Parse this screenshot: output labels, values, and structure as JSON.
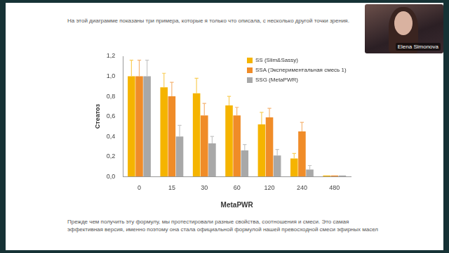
{
  "slide": {
    "intro": "На этой диаграмме показаны три примера, которые я только что описала, с несколько другой точки зрения.",
    "note": "Прежде чем получить эту формулу, мы протестировали разные свойства, соотношения и смеси. Это самая эффективная версия, именно поэтому она стала официальной формулой нашей превосходной смеси эфирных масел",
    "speaker": "Elena Simonova"
  },
  "chart_data": {
    "type": "bar",
    "x_label": "MetaPWR",
    "y_label": "Стеатоз",
    "categories": [
      "0",
      "15",
      "30",
      "60",
      "120",
      "240",
      "480"
    ],
    "series": [
      {
        "name": "SS (Slim&Sassy)",
        "color": "#f5b400",
        "values": [
          1.0,
          0.89,
          0.83,
          0.71,
          0.52,
          0.18,
          0.01
        ],
        "errors": [
          0.16,
          0.14,
          0.15,
          0.09,
          0.12,
          0.05,
          0
        ]
      },
      {
        "name": "SSA (Экспериментальная смесь 1)",
        "color": "#f08c28",
        "values": [
          1.0,
          0.8,
          0.61,
          0.61,
          0.59,
          0.45,
          0.01
        ],
        "errors": [
          0.16,
          0.14,
          0.12,
          0.08,
          0.09,
          0.09,
          0
        ]
      },
      {
        "name": "SSG (MetaPWR)",
        "color": "#a8a8a8",
        "values": [
          1.0,
          0.4,
          0.33,
          0.26,
          0.21,
          0.07,
          0.01
        ],
        "errors": [
          0.16,
          0.11,
          0.07,
          0.06,
          0.06,
          0.04,
          0
        ]
      }
    ],
    "ylim": [
      0,
      1.2
    ],
    "yticks": [
      {
        "value": 0,
        "label": "0,0"
      },
      {
        "value": 0.2,
        "label": "0,2"
      },
      {
        "value": 0.4,
        "label": "0,4"
      },
      {
        "value": 0.6,
        "label": "0,6"
      },
      {
        "value": 0.8,
        "label": "0,8"
      },
      {
        "value": 1.0,
        "label": "1,0"
      },
      {
        "value": 1.2,
        "label": "1,2"
      }
    ],
    "grid": false,
    "legend": "upper right"
  }
}
